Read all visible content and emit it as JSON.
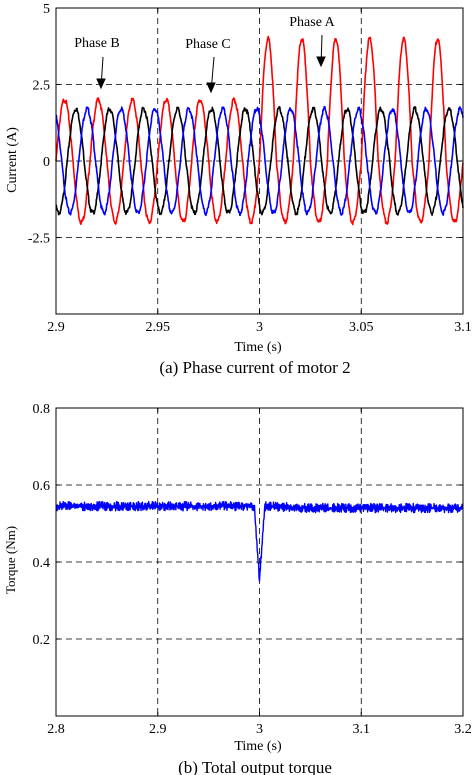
{
  "chart_data": [
    {
      "type": "line",
      "caption": "(a) Phase current of motor 2",
      "xlabel": "Time (s)",
      "ylabel": "Current (A)",
      "xlim": [
        2.9,
        3.1
      ],
      "ylim": [
        -5,
        5
      ],
      "xticks": [
        "2.9",
        "2.95",
        "3",
        "3.05",
        "3.1"
      ],
      "yticks": [
        "5",
        "2.5",
        "0",
        "-2.5"
      ],
      "grid": true,
      "annotations": [
        "Phase B",
        "Phase C",
        "Phase A"
      ],
      "series": [
        {
          "name": "Phase A",
          "color": "#ff0000",
          "x": [
            2.9,
            2.9083,
            2.9167,
            2.925,
            2.9333,
            2.9417,
            2.95,
            2.9583,
            2.9667,
            2.975,
            2.9833,
            2.9917,
            3.0,
            3.0083,
            3.0167,
            3.025,
            3.0333,
            3.0417,
            3.05,
            3.0583,
            3.0667,
            3.075,
            3.0833,
            3.0917,
            3.1
          ],
          "values": [
            0.0,
            2.0,
            0.0,
            -2.0,
            0.0,
            2.0,
            0.0,
            -2.0,
            0.0,
            2.0,
            0.0,
            -2.0,
            0.0,
            4.0,
            0.0,
            -2.0,
            0.0,
            4.0,
            0.0,
            -2.0,
            0.0,
            4.0,
            0.0,
            -2.0,
            0.0
          ]
        },
        {
          "name": "Phase B",
          "color": "#000000",
          "x": [
            2.9,
            2.9083,
            2.9167,
            2.925,
            2.9333,
            2.9417,
            2.95,
            2.9583,
            2.9667,
            2.975,
            2.9833,
            2.9917,
            3.0,
            3.0083,
            3.0167,
            3.025,
            3.0333,
            3.0417,
            3.05,
            3.0583,
            3.0667,
            3.075,
            3.0833,
            3.0917,
            3.1
          ],
          "values": [
            1.7,
            -1.0,
            -1.7,
            1.0,
            1.7,
            -1.0,
            -1.7,
            1.0,
            1.7,
            -1.0,
            -1.7,
            1.0,
            1.7,
            -1.0,
            -1.7,
            1.0,
            1.7,
            -1.0,
            -1.7,
            1.0,
            1.7,
            -1.0,
            -1.7,
            1.0,
            1.7
          ]
        },
        {
          "name": "Phase C",
          "color": "#0000ff",
          "x": [
            2.9,
            2.9083,
            2.9167,
            2.925,
            2.9333,
            2.9417,
            2.95,
            2.9583,
            2.9667,
            2.975,
            2.9833,
            2.9917,
            3.0,
            3.0083,
            3.0167,
            3.025,
            3.0333,
            3.0417,
            3.05,
            3.0583,
            3.0667,
            3.075,
            3.0833,
            3.0917,
            3.1
          ],
          "values": [
            -1.7,
            -1.0,
            1.7,
            1.0,
            -1.7,
            -1.0,
            1.7,
            1.0,
            -1.7,
            -1.0,
            1.7,
            1.0,
            -1.7,
            -1.0,
            1.7,
            1.0,
            -1.7,
            -1.0,
            1.7,
            1.0,
            -1.7,
            -1.0,
            1.7,
            1.0,
            -1.7
          ]
        }
      ]
    },
    {
      "type": "line",
      "caption": "(b) Total output torque",
      "xlabel": "Time (s)",
      "ylabel": "Torque (Nm)",
      "xlim": [
        2.8,
        3.2
      ],
      "ylim": [
        0,
        0.8
      ],
      "xticks": [
        "2.8",
        "2.9",
        "3",
        "3.1",
        "3.2"
      ],
      "yticks": [
        "0.8",
        "0.6",
        "0.4",
        "0.2"
      ],
      "grid": true,
      "series": [
        {
          "name": "Torque",
          "color": "#0000ff",
          "x": [
            2.8,
            2.85,
            2.9,
            2.95,
            2.995,
            3.0,
            3.005,
            3.05,
            3.1,
            3.15,
            3.2
          ],
          "values": [
            0.545,
            0.545,
            0.545,
            0.545,
            0.545,
            0.35,
            0.545,
            0.54,
            0.54,
            0.54,
            0.54
          ]
        }
      ]
    }
  ]
}
